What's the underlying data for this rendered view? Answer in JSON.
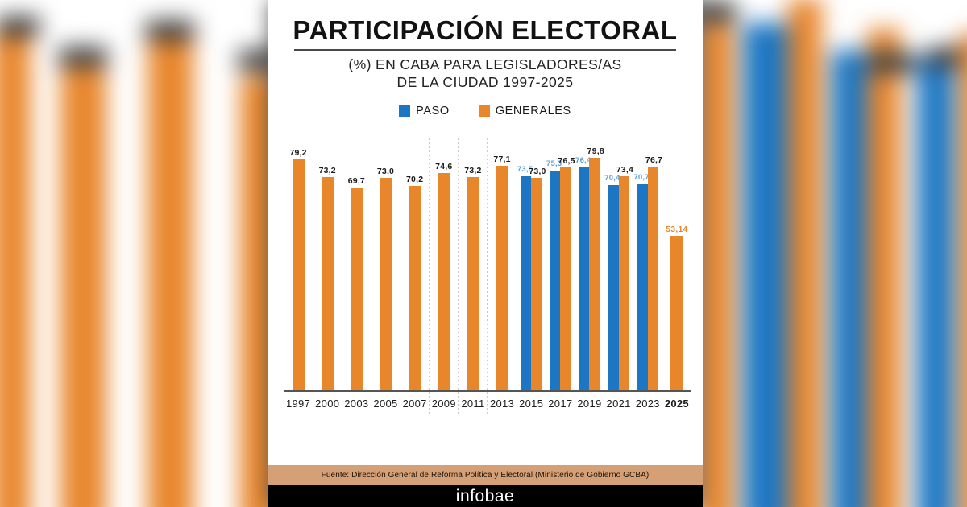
{
  "header": {
    "title": "PARTICIPACIÓN ELECTORAL",
    "subtitle_line1": "(%) EN CABA PARA LEGISLADORES/AS",
    "subtitle_line2": "DE LA CIUDAD 1997-2025"
  },
  "legend": {
    "paso": {
      "label": "PASO",
      "color": "#1C76C3"
    },
    "generales": {
      "label": "GENERALES",
      "color": "#E8862C"
    }
  },
  "chart_data": {
    "type": "bar",
    "title": "PARTICIPACIÓN ELECTORAL",
    "subtitle": "(%) EN CABA PARA LEGISLADORES/AS DE LA CIUDAD 1997-2025",
    "categories": [
      "1997",
      "2000",
      "2003",
      "2005",
      "2007",
      "2009",
      "2011",
      "2013",
      "2015",
      "2017",
      "2019",
      "2021",
      "2023",
      "2025"
    ],
    "series": [
      {
        "name": "PASO",
        "color": "#1C76C3",
        "label_color": "#5C9FD8",
        "values": [
          null,
          null,
          null,
          null,
          null,
          null,
          null,
          null,
          73.5,
          75.3,
          76.4,
          70.4,
          70.7,
          null
        ],
        "labels": [
          null,
          null,
          null,
          null,
          null,
          null,
          null,
          null,
          "73,5",
          "75,3",
          "76,4",
          "70,4",
          "70,7",
          null
        ]
      },
      {
        "name": "GENERALES",
        "color": "#E8862C",
        "label_color": "#1A1A1A",
        "last_label_color": "#E8862C",
        "values": [
          79.2,
          73.2,
          69.7,
          73.0,
          70.2,
          74.6,
          73.2,
          77.1,
          73.0,
          76.5,
          79.8,
          73.4,
          76.7,
          53.14
        ],
        "labels": [
          "79,2",
          "73,2",
          "69,7",
          "73,0",
          "70,2",
          "74,6",
          "73,2",
          "77,1",
          "73,0",
          "76,5",
          "79,8",
          "73,4",
          "76,7",
          "53,14"
        ]
      }
    ],
    "ylabel": "",
    "xlabel": "",
    "ylim": [
      0,
      86.4
    ],
    "grid": "vertical-dashed-between-categories",
    "legend_position": "top",
    "bold_category": "2025"
  },
  "footer": {
    "source": "Fuente: Dirección General de Reforma Política y Electoral (Ministerio de Gobierno GCBA)",
    "brand": "infobae"
  },
  "colors": {
    "paso_bar": "#1C76C3",
    "generales_bar": "#E8862C",
    "paso_value_label": "#5C9FD8",
    "generales_value_label": "#1A1A1A",
    "last_value_label": "#E8862C",
    "source_band": "#D6A077",
    "brand_band": "#000000",
    "axis": "#555555",
    "gridline": "#C9C9C9"
  }
}
